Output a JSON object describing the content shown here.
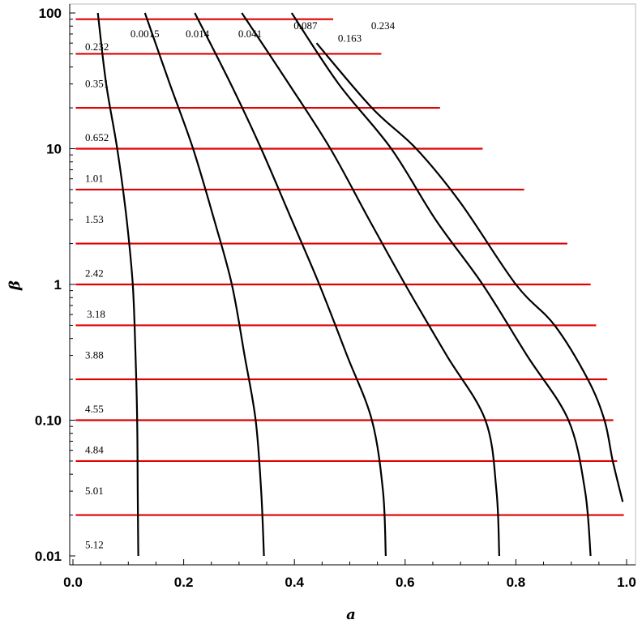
{
  "chart_data": {
    "type": "line",
    "xlabel": "a",
    "ylabel": "β",
    "xlim": [
      0.0,
      1.0
    ],
    "ylim": [
      0.01,
      100
    ],
    "yscale": "log",
    "grid": false,
    "x_ticks": [
      "0.0",
      "0.2",
      "0.4",
      "0.6",
      "0.8",
      "1.0"
    ],
    "y_ticks": [
      "0.01",
      "0.10",
      "1",
      "10",
      "100"
    ],
    "black_curves": [
      {
        "label": "0.0015",
        "label_at": [
          0.13,
          70
        ],
        "points": [
          [
            0.045,
            100
          ],
          [
            0.06,
            30
          ],
          [
            0.08,
            10
          ],
          [
            0.097,
            3
          ],
          [
            0.108,
            1
          ],
          [
            0.113,
            0.3
          ],
          [
            0.116,
            0.1
          ],
          [
            0.117,
            0.03
          ],
          [
            0.118,
            0.01
          ]
        ]
      },
      {
        "label": "0.014",
        "label_at": [
          0.225,
          70
        ],
        "points": [
          [
            0.13,
            100
          ],
          [
            0.175,
            30
          ],
          [
            0.217,
            10
          ],
          [
            0.255,
            3
          ],
          [
            0.287,
            1
          ],
          [
            0.31,
            0.3
          ],
          [
            0.33,
            0.1
          ],
          [
            0.34,
            0.03
          ],
          [
            0.345,
            0.01
          ]
        ]
      },
      {
        "label": "0.041",
        "label_at": [
          0.32,
          70
        ],
        "points": [
          [
            0.22,
            100
          ],
          [
            0.285,
            30
          ],
          [
            0.34,
            10
          ],
          [
            0.395,
            3
          ],
          [
            0.445,
            1
          ],
          [
            0.495,
            0.3
          ],
          [
            0.54,
            0.1
          ],
          [
            0.56,
            0.03
          ],
          [
            0.565,
            0.01
          ]
        ]
      },
      {
        "label": "0.087",
        "label_at": [
          0.42,
          80
        ],
        "points": [
          [
            0.305,
            100
          ],
          [
            0.39,
            30
          ],
          [
            0.465,
            10
          ],
          [
            0.535,
            3
          ],
          [
            0.6,
            1
          ],
          [
            0.675,
            0.3
          ],
          [
            0.745,
            0.1
          ],
          [
            0.765,
            0.03
          ],
          [
            0.77,
            0.01
          ]
        ]
      },
      {
        "label": "0.163",
        "label_at": [
          0.5,
          65
        ],
        "points": [
          [
            0.395,
            100
          ],
          [
            0.48,
            30
          ],
          [
            0.575,
            10
          ],
          [
            0.655,
            3
          ],
          [
            0.74,
            1
          ],
          [
            0.82,
            0.3
          ],
          [
            0.895,
            0.1
          ],
          [
            0.925,
            0.03
          ],
          [
            0.935,
            0.01
          ]
        ]
      },
      {
        "label": "0.234",
        "label_at": [
          0.56,
          80
        ],
        "points": [
          [
            0.44,
            60
          ],
          [
            0.54,
            20
          ],
          [
            0.62,
            10
          ],
          [
            0.7,
            4
          ],
          [
            0.8,
            1
          ],
          [
            0.87,
            0.5
          ],
          [
            0.93,
            0.2
          ],
          [
            0.96,
            0.1
          ],
          [
            0.975,
            0.05
          ],
          [
            0.993,
            0.025
          ]
        ]
      }
    ],
    "red_lines": [
      {
        "beta": 90,
        "label": "0.232",
        "label_at": [
          0.022,
          56
        ],
        "x_end": 0.47
      },
      {
        "beta": 50,
        "label": "0.351",
        "label_at": [
          0.022,
          30
        ],
        "x_end": 0.557
      },
      {
        "beta": 20,
        "label": "0.652",
        "label_at": [
          0.022,
          12
        ],
        "x_end": 0.663
      },
      {
        "beta": 10,
        "label": "1.01",
        "label_at": [
          0.022,
          6
        ],
        "x_end": 0.74
      },
      {
        "beta": 5,
        "label": "1.53",
        "label_at": [
          0.022,
          3
        ],
        "x_end": 0.815
      },
      {
        "beta": 2,
        "label": "2.42",
        "label_at": [
          0.022,
          1.2
        ],
        "x_end": 0.893
      },
      {
        "beta": 1,
        "label": "3.18",
        "label_at": [
          0.025,
          0.6
        ],
        "x_end": 0.935
      },
      {
        "beta": 0.5,
        "label": "3.88",
        "label_at": [
          0.022,
          0.3
        ],
        "x_end": 0.945
      },
      {
        "beta": 0.2,
        "label": "4.55",
        "label_at": [
          0.022,
          0.12
        ],
        "x_end": 0.965
      },
      {
        "beta": 0.1,
        "label": "4.84",
        "label_at": [
          0.022,
          0.06
        ],
        "x_end": 0.976
      },
      {
        "beta": 0.05,
        "label": "5.01",
        "label_at": [
          0.022,
          0.03
        ],
        "x_end": 0.983
      },
      {
        "beta": 0.02,
        "label": "5.12",
        "label_at": [
          0.022,
          0.012
        ],
        "x_end": 0.995
      }
    ]
  }
}
